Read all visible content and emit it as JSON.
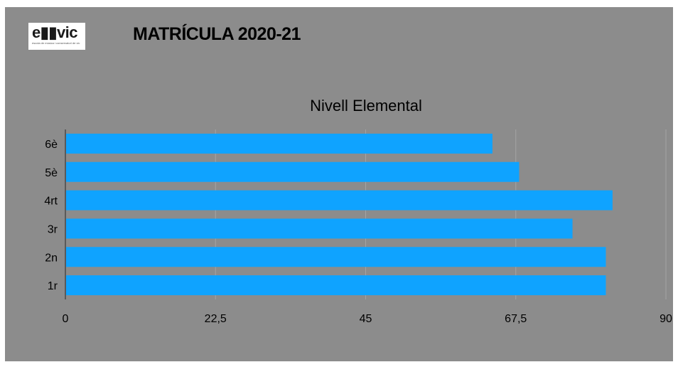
{
  "header": {
    "logo_text": "e▮▮vic",
    "logo_subtext": "escola de música i conservatori de vic",
    "title": "MATRÍCULA 2020-21"
  },
  "chart_data": {
    "type": "bar",
    "orientation": "horizontal",
    "title": "Nivell Elemental",
    "categories": [
      "6è",
      "5è",
      "4rt",
      "3r",
      "2n",
      "1r"
    ],
    "values": [
      64,
      68,
      82,
      76,
      81,
      81
    ],
    "xlim": [
      0,
      90
    ],
    "xticks": [
      "0",
      "22,5",
      "45",
      "67,5",
      "90"
    ],
    "grid": true,
    "legend": "none",
    "bar_color": "#0fa3ff",
    "background_color": "#8c8c8c"
  }
}
